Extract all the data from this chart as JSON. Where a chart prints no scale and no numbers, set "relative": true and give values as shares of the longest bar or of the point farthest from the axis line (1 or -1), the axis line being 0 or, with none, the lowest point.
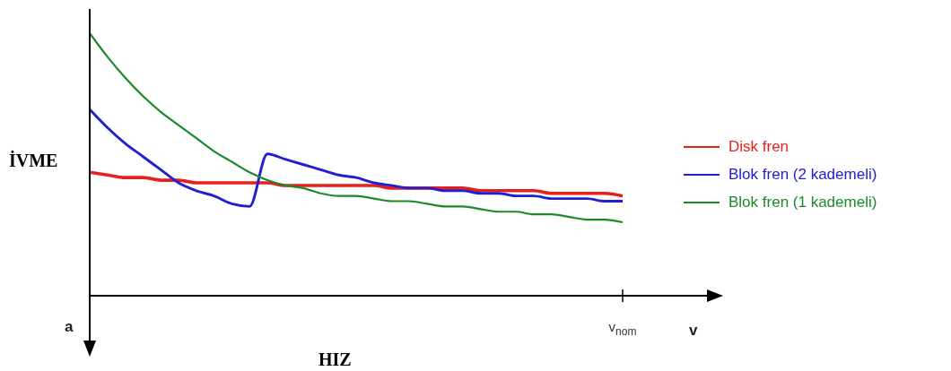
{
  "chart_data": {
    "type": "line",
    "relative": true,
    "ylabel": "İVME",
    "xlabel": "HIZ",
    "annotations": [
      "a",
      "v",
      "v$_{nom}$"
    ],
    "legend": "right",
    "grid": false,
    "marker": "none",
    "line_style": "solid",
    "categories": [
      null,
      null,
      null,
      null,
      null,
      null,
      null,
      null,
      null,
      null,
      null,
      null,
      null,
      null,
      null,
      null,
      null,
      null,
      null,
      null,
      null,
      null,
      null,
      null,
      null,
      null,
      null,
      null,
      null,
      null,
      null
    ],
    "series": [
      {
        "name": "Disk fren",
        "color": "#e8201c",
        "values": [
          0.47,
          0.46,
          0.45,
          0.45,
          0.44,
          0.44,
          0.43,
          0.43,
          0.43,
          0.43,
          0.43,
          0.42,
          0.42,
          0.42,
          0.42,
          0.42,
          0.42,
          0.41,
          0.41,
          0.41,
          0.41,
          0.41,
          0.4,
          0.4,
          0.4,
          0.4,
          0.39,
          0.39,
          0.39,
          0.39,
          0.38
        ]
      },
      {
        "name": "Blok fren (2 kademeli)",
        "color": "#2020d0",
        "values": [
          0.71,
          0.64,
          0.58,
          0.53,
          0.48,
          0.43,
          0.4,
          0.38,
          0.35,
          0.34,
          0.54,
          0.52,
          0.5,
          0.48,
          0.46,
          0.45,
          0.43,
          0.42,
          0.41,
          0.41,
          0.4,
          0.4,
          0.39,
          0.39,
          0.38,
          0.38,
          0.37,
          0.37,
          0.37,
          0.36,
          0.36
        ]
      },
      {
        "name": "Blok fren (1 kademeli)",
        "color": "#1a8a2a",
        "values": [
          1.0,
          0.91,
          0.83,
          0.76,
          0.7,
          0.65,
          0.6,
          0.55,
          0.51,
          0.47,
          0.44,
          0.42,
          0.41,
          0.39,
          0.38,
          0.38,
          0.37,
          0.36,
          0.36,
          0.35,
          0.34,
          0.34,
          0.33,
          0.32,
          0.32,
          0.31,
          0.31,
          0.3,
          0.29,
          0.29,
          0.28
        ]
      }
    ]
  }
}
